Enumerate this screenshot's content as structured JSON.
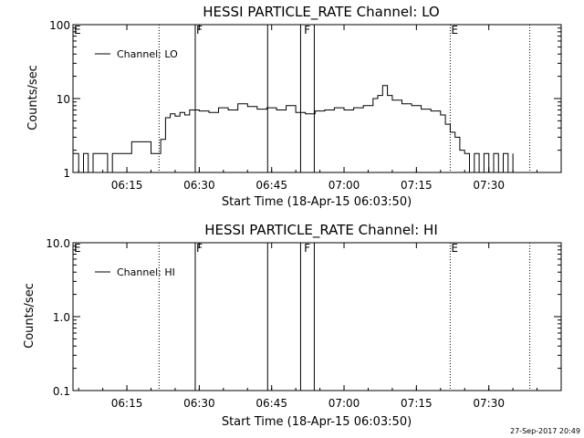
{
  "footer": {
    "timestamp": "27-Sep-2017 20:49"
  },
  "chart_data": [
    {
      "type": "line",
      "title": "HESSI PARTICLE_RATE Channel: LO",
      "xlabel": "Start Time (18-Apr-15 06:03:50)",
      "ylabel": "Counts/sec",
      "y_scale": "log",
      "ylim": [
        1,
        100
      ],
      "xlim": [
        "06:03:50",
        "07:45:00"
      ],
      "x_ticks": [
        "06:15",
        "06:30",
        "06:45",
        "07:00",
        "07:15",
        "07:30"
      ],
      "y_ticks": [
        "1",
        "10",
        "100"
      ],
      "legend": {
        "position": "top-left",
        "entries": [
          "Channel: LO"
        ]
      },
      "annotations": [
        {
          "text": "E",
          "x": "06:03:50"
        },
        {
          "text": "F",
          "x": "06:29:10"
        },
        {
          "text": "F",
          "x": "06:51:30"
        },
        {
          "text": "E",
          "x": "07:22:00"
        }
      ],
      "dotted_lines": [
        "06:21:40",
        "07:22:00",
        "07:38:30"
      ],
      "solid_lines": [
        "06:29:10",
        "06:44:10",
        "06:51:00",
        "06:53:50"
      ],
      "series": [
        {
          "x": [
            "06:03:50",
            "06:05:00",
            "06:06:00",
            "06:07:00",
            "06:08:00",
            "06:09:00",
            "06:10:00",
            "06:11:00",
            "06:12:00",
            "06:13:00",
            "06:14:00",
            "06:15:00",
            "06:16:00",
            "06:17:00",
            "06:18:00",
            "06:19:00",
            "06:20:00",
            "06:21:00",
            "06:21:40",
            "06:22:00",
            "06:23:00",
            "06:24:00",
            "06:25:00",
            "06:26:00",
            "06:27:00",
            "06:28:00",
            "06:30:00",
            "06:32:00",
            "06:34:00",
            "06:36:00",
            "06:38:00",
            "06:40:00",
            "06:42:00",
            "06:44:00",
            "06:46:00",
            "06:48:00",
            "06:50:00",
            "06:52:00",
            "06:54:00",
            "06:56:00",
            "06:58:00",
            "07:00:00",
            "07:02:00",
            "07:04:00",
            "07:06:00",
            "07:07:00",
            "07:08:00",
            "07:09:00",
            "07:10:00",
            "07:12:00",
            "07:14:00",
            "07:16:00",
            "07:18:00",
            "07:20:00",
            "07:21:00",
            "07:22:00",
            "07:23:00",
            "07:24:00",
            "07:25:00",
            "07:26:00",
            "07:27:00",
            "07:28:00",
            "07:29:00",
            "07:30:00",
            "07:31:00",
            "07:32:00",
            "07:33:00",
            "07:34:00",
            "07:35:00"
          ],
          "values": [
            1.8,
            1.0,
            1.8,
            1.0,
            1.8,
            1.8,
            1.8,
            1.0,
            1.8,
            1.8,
            1.8,
            1.8,
            2.6,
            2.6,
            2.6,
            2.6,
            1.8,
            1.8,
            1.8,
            2.8,
            5.5,
            6.2,
            5.8,
            6.5,
            6.0,
            7.0,
            6.8,
            6.5,
            7.5,
            7.0,
            8.5,
            7.8,
            7.2,
            7.5,
            7.0,
            8.0,
            6.5,
            6.2,
            6.8,
            7.0,
            7.5,
            7.0,
            7.5,
            8.0,
            10.0,
            11.0,
            15.0,
            11.0,
            9.5,
            8.5,
            8.0,
            7.2,
            6.8,
            6.0,
            4.5,
            3.5,
            3.0,
            2.0,
            1.8,
            1.0,
            1.8,
            1.0,
            1.8,
            1.0,
            1.8,
            1.0,
            1.8,
            1.0,
            1.8
          ]
        }
      ]
    },
    {
      "type": "line",
      "title": "HESSI PARTICLE_RATE Channel: HI",
      "xlabel": "Start Time (18-Apr-15 06:03:50)",
      "ylabel": "Counts/sec",
      "y_scale": "log",
      "ylim": [
        0.1,
        10
      ],
      "xlim": [
        "06:03:50",
        "07:45:00"
      ],
      "x_ticks": [
        "06:15",
        "06:30",
        "06:45",
        "07:00",
        "07:15",
        "07:30"
      ],
      "y_ticks": [
        "0.1",
        "1.0",
        "10.0"
      ],
      "legend": {
        "position": "top-left",
        "entries": [
          "Channel: HI"
        ]
      },
      "annotations": [
        {
          "text": "E",
          "x": "06:03:50"
        },
        {
          "text": "F",
          "x": "06:29:10"
        },
        {
          "text": "F",
          "x": "06:51:30"
        },
        {
          "text": "E",
          "x": "07:22:00"
        }
      ],
      "dotted_lines": [
        "06:21:40",
        "07:22:00",
        "07:38:30"
      ],
      "solid_lines": [
        "06:29:10",
        "06:44:10",
        "06:51:00",
        "06:53:50"
      ],
      "series": [
        {
          "x": [],
          "values": []
        }
      ]
    }
  ]
}
